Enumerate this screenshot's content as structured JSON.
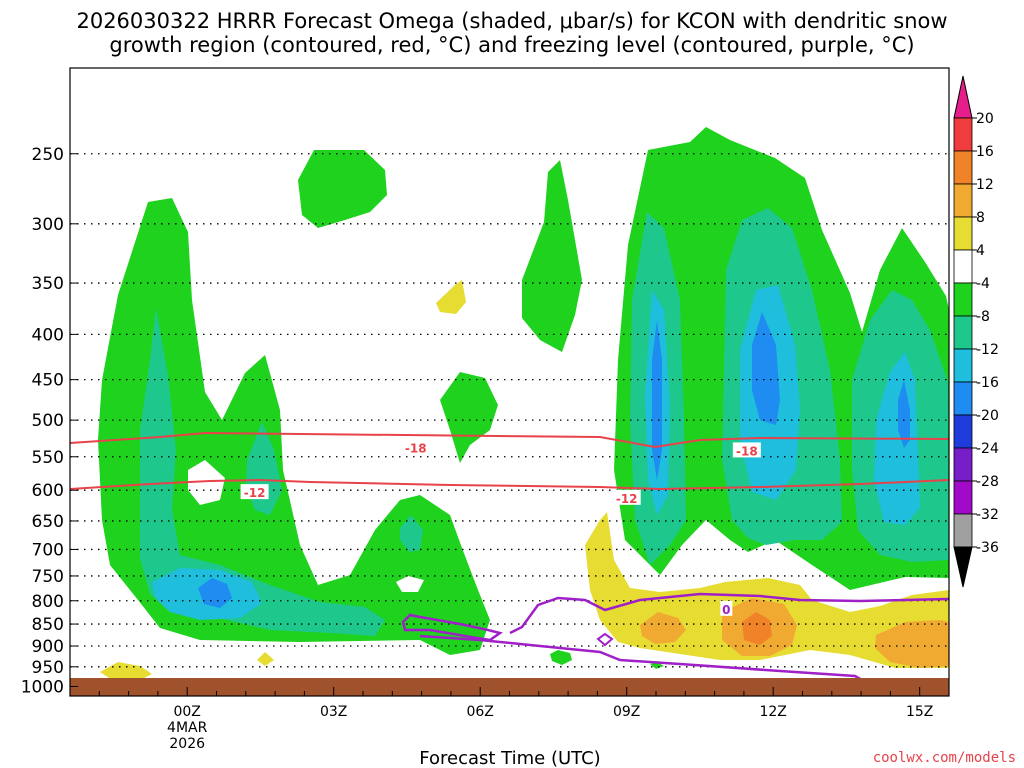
{
  "chart_data": {
    "type": "contour-time-height",
    "title_line1": "2026030322 HRRR Forecast Omega (shaded, μbar/s) for KCON with dendritic snow",
    "title_line2": "growth region (contoured, red, °C) and freezing level (contoured, purple, °C)",
    "xlabel": "Forecast Time (UTC)",
    "xlim_hours": [
      -3,
      27
    ],
    "x_ticks": [
      {
        "hour": 1,
        "label": "00Z",
        "sub1": "4MAR",
        "sub2": "2026"
      },
      {
        "hour": 6,
        "label": "03Z"
      },
      {
        "hour": 11,
        "label": "06Z"
      },
      {
        "hour": 16,
        "label": "09Z"
      },
      {
        "hour": 21,
        "label": "12Z"
      },
      {
        "hour": 26,
        "label": "15Z"
      }
    ],
    "ylim_hpa": [
      1025,
      200
    ],
    "y_ticks": [
      250,
      300,
      350,
      400,
      450,
      500,
      550,
      600,
      650,
      700,
      750,
      800,
      850,
      900,
      950,
      1000
    ],
    "colorbar": {
      "tick_labels": [
        "20",
        "16",
        "12",
        "8",
        "4",
        "-4",
        "-8",
        "-12",
        "-16",
        "-20",
        "-24",
        "-28",
        "-32",
        "-36"
      ],
      "bands": [
        {
          "min": 16,
          "max": 20,
          "color": "#f03c3c"
        },
        {
          "min": 12,
          "max": 16,
          "color": "#f08228"
        },
        {
          "min": 8,
          "max": 12,
          "color": "#f0aa32"
        },
        {
          "min": 4,
          "max": 8,
          "color": "#e6dc32"
        },
        {
          "min": -4,
          "max": 4,
          "color": "#ffffff"
        },
        {
          "min": -8,
          "max": -4,
          "color": "#1ed21e"
        },
        {
          "min": -12,
          "max": -8,
          "color": "#1ec88c"
        },
        {
          "min": -16,
          "max": -12,
          "color": "#1ebedc"
        },
        {
          "min": -20,
          "max": -16,
          "color": "#1e8cf0"
        },
        {
          "min": -24,
          "max": -20,
          "color": "#1e3cdc"
        },
        {
          "min": -28,
          "max": -24,
          "color": "#781ec8"
        },
        {
          "min": -32,
          "max": -28,
          "color": "#a00ac8"
        },
        {
          "min": -36,
          "max": -32,
          "color": "#a0a0a0"
        }
      ],
      "over_color": "#e61e8c",
      "under_color": "#000000"
    },
    "contours": {
      "dendritic_minus18": {
        "label": "-18",
        "color": "#e8424a",
        "points": [
          [
            -3,
            552
          ],
          [
            0,
            545
          ],
          [
            3,
            536
          ],
          [
            6,
            537
          ],
          [
            11,
            537
          ],
          [
            16,
            542
          ],
          [
            18,
            552
          ],
          [
            20,
            546
          ],
          [
            22,
            540
          ],
          [
            27,
            540
          ]
        ]
      },
      "dendritic_minus12": {
        "label": "-12",
        "color": "#e8424a",
        "points": [
          [
            -3,
            617
          ],
          [
            0,
            610
          ],
          [
            3,
            607
          ],
          [
            4,
            603
          ],
          [
            6,
            606
          ],
          [
            11,
            609
          ],
          [
            17,
            612
          ],
          [
            20,
            613
          ],
          [
            23,
            610
          ],
          [
            27,
            604
          ]
        ]
      },
      "freezing_level_0": {
        "label": "0",
        "color": "#a020c8",
        "points": [
          [
            14.5,
            898
          ],
          [
            15,
            890
          ],
          [
            16,
            870
          ],
          [
            17,
            838
          ],
          [
            18,
            842
          ],
          [
            19,
            830
          ],
          [
            20,
            816
          ],
          [
            21.5,
            813
          ],
          [
            23,
            820
          ],
          [
            25,
            823
          ],
          [
            27,
            821
          ]
        ]
      }
    },
    "contour_labels": [
      {
        "text": "-18",
        "hour": 8.8,
        "hpa": 537,
        "color": "#e8424a"
      },
      {
        "text": "-18",
        "hour": 20.1,
        "hpa": 541,
        "color": "#e8424a"
      },
      {
        "text": "-12",
        "hour": 3.3,
        "hpa": 603,
        "color": "#e8424a"
      },
      {
        "text": "-12",
        "hour": 16.0,
        "hpa": 612,
        "color": "#e8424a"
      },
      {
        "text": "0",
        "hour": 19.4,
        "hpa": 817,
        "color": "#a020c8"
      }
    ],
    "credit": "coolwx.com/models"
  }
}
